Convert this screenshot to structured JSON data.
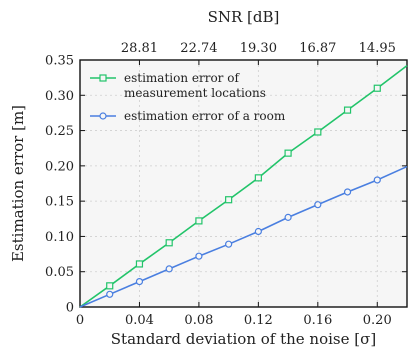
{
  "chart_data": {
    "type": "line",
    "x": [
      0,
      0.02,
      0.04,
      0.06,
      0.08,
      0.1,
      0.12,
      0.14,
      0.16,
      0.18,
      0.2,
      0.22
    ],
    "series": [
      {
        "name": "estimation error of measurement locations",
        "name_lines": [
          "estimation error of",
          "measurement locations"
        ],
        "marker": "square",
        "color": "#22c46a",
        "marker_x": [
          0.02,
          0.04,
          0.06,
          0.08,
          0.1,
          0.12,
          0.14,
          0.16,
          0.18,
          0.2
        ],
        "values": [
          0,
          0.03,
          0.061,
          0.091,
          0.122,
          0.152,
          0.183,
          0.218,
          0.248,
          0.279,
          0.31,
          0.342
        ]
      },
      {
        "name": "estimation error of a room",
        "name_lines": [
          "estimation error of a room"
        ],
        "marker": "circle",
        "color": "#4a7fe0",
        "marker_x": [
          0.02,
          0.04,
          0.06,
          0.08,
          0.1,
          0.12,
          0.14,
          0.16,
          0.18,
          0.2
        ],
        "values": [
          0,
          0.018,
          0.036,
          0.054,
          0.072,
          0.089,
          0.107,
          0.127,
          0.145,
          0.163,
          0.18,
          0.199
        ]
      }
    ],
    "xlabel": "Standard deviation of the noise [σ]",
    "ylabel": "Estimation error [m]",
    "top_xlabel": "SNR [dB]",
    "xlim": [
      0,
      0.22
    ],
    "ylim": [
      0,
      0.35
    ],
    "xticks": [
      0,
      0.04,
      0.08,
      0.12,
      0.16,
      0.2
    ],
    "xtick_labels": [
      "0",
      "0.04",
      "0.08",
      "0.12",
      "0.16",
      "0.20"
    ],
    "yticks": [
      0,
      0.05,
      0.1,
      0.15,
      0.2,
      0.25,
      0.3,
      0.35
    ],
    "ytick_labels": [
      "0",
      "0.05",
      "0.10",
      "0.15",
      "0.20",
      "0.25",
      "0.30",
      "0.35"
    ],
    "top_ticks": [
      0.04,
      0.08,
      0.12,
      0.16,
      0.2
    ],
    "top_tick_labels": [
      "28.81",
      "22.74",
      "19.30",
      "16.87",
      "14.95"
    ],
    "grid": true,
    "legend_position": "top-left"
  }
}
